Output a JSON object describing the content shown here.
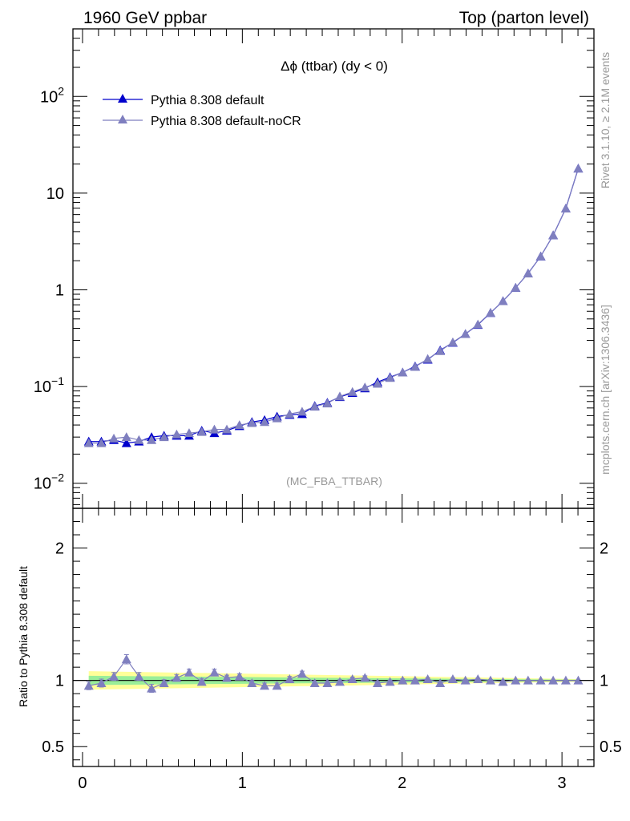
{
  "header": {
    "left": "1960 GeV ppbar",
    "right": "Top (parton level)"
  },
  "side": {
    "rivet": "Rivet 3.1.10, ≥ 2.1M events",
    "mcplots": "mcplots.cern.ch [arXiv:1306.3436]"
  },
  "colors": {
    "default": "#0000cc",
    "nocr": "#7f7fbf",
    "band_outer": "#ffff99",
    "band_inner": "#99ee99",
    "watermark": "#999999"
  },
  "chart_data": [
    {
      "type": "line",
      "panel": "main",
      "title": "Δϕ (ttbar) (dy < 0)",
      "watermark": "(MC_FBA_TTBAR)",
      "yscale": "log",
      "xlim": [
        -0.06,
        3.2
      ],
      "ylim": [
        0.0055,
        500
      ],
      "yticks": [
        {
          "value": 0.01,
          "base": "10",
          "exp": "−2"
        },
        {
          "value": 0.1,
          "base": "10",
          "exp": "−1"
        },
        {
          "value": 1,
          "base": "1",
          "exp": ""
        },
        {
          "value": 10,
          "base": "10",
          "exp": ""
        },
        {
          "value": 100,
          "base": "10",
          "exp": "2"
        }
      ],
      "legend_position": "top-left",
      "x": [
        0.039,
        0.118,
        0.196,
        0.275,
        0.353,
        0.432,
        0.51,
        0.589,
        0.667,
        0.746,
        0.825,
        0.903,
        0.982,
        1.06,
        1.139,
        1.217,
        1.296,
        1.374,
        1.453,
        1.532,
        1.61,
        1.689,
        1.767,
        1.846,
        1.924,
        2.003,
        2.081,
        2.16,
        2.238,
        2.317,
        2.396,
        2.474,
        2.553,
        2.631,
        2.71,
        2.788,
        2.867,
        2.945,
        3.024,
        3.102
      ],
      "series": [
        {
          "name": "Pythia 8.308 default",
          "color": "#0000cc",
          "values": [
            0.027,
            0.027,
            0.028,
            0.026,
            0.027,
            0.03,
            0.031,
            0.031,
            0.031,
            0.035,
            0.033,
            0.035,
            0.039,
            0.043,
            0.045,
            0.049,
            0.051,
            0.052,
            0.063,
            0.068,
            0.078,
            0.086,
            0.096,
            0.111,
            0.125,
            0.14,
            0.162,
            0.19,
            0.237,
            0.284,
            0.35,
            0.435,
            0.578,
            0.766,
            1.05,
            1.48,
            2.22,
            3.67,
            6.94,
            18.0
          ]
        },
        {
          "name": "Pythia 8.308 default-noCR",
          "color": "#7f7fbf",
          "values": [
            0.026,
            0.026,
            0.029,
            0.03,
            0.028,
            0.028,
            0.03,
            0.032,
            0.033,
            0.034,
            0.036,
            0.036,
            0.04,
            0.042,
            0.043,
            0.047,
            0.052,
            0.055,
            0.062,
            0.067,
            0.079,
            0.088,
            0.098,
            0.107,
            0.123,
            0.14,
            0.16,
            0.193,
            0.233,
            0.287,
            0.35,
            0.439,
            0.58,
            0.766,
            1.05,
            1.48,
            2.22,
            3.67,
            6.94,
            18.0
          ]
        }
      ]
    },
    {
      "type": "line",
      "panel": "ratio",
      "ylabel": "Ratio to Pythia 8.308 default",
      "ylim": [
        0.35,
        2.3
      ],
      "yticks": [
        0.5,
        1,
        2
      ],
      "xticks": [
        0,
        1,
        2,
        3
      ],
      "xlim": [
        -0.06,
        3.2
      ],
      "band_outer_halfwidth": [
        0.07,
        0.01
      ],
      "band_inner_halfwidth": [
        0.035,
        0.005
      ],
      "x": [
        0.039,
        0.118,
        0.196,
        0.275,
        0.353,
        0.432,
        0.51,
        0.589,
        0.667,
        0.746,
        0.825,
        0.903,
        0.982,
        1.06,
        1.139,
        1.217,
        1.296,
        1.374,
        1.453,
        1.532,
        1.61,
        1.689,
        1.767,
        1.846,
        1.924,
        2.003,
        2.081,
        2.16,
        2.238,
        2.317,
        2.396,
        2.474,
        2.553,
        2.631,
        2.71,
        2.788,
        2.867,
        2.945,
        3.024,
        3.102
      ],
      "series": [
        {
          "name": "Pythia 8.308 default-noCR",
          "color": "#7f7fbf",
          "values": [
            0.96,
            0.98,
            1.03,
            1.16,
            1.03,
            0.94,
            0.98,
            1.02,
            1.06,
            0.99,
            1.06,
            1.02,
            1.03,
            0.98,
            0.96,
            0.96,
            1.01,
            1.05,
            0.98,
            0.98,
            0.99,
            1.01,
            1.02,
            0.98,
            0.99,
            1.0,
            1.0,
            1.01,
            0.98,
            1.01,
            1.0,
            1.01,
            1.0,
            0.99,
            1.0,
            1.0,
            1.0,
            1.0,
            1.0,
            1.0
          ],
          "errors": [
            0.03,
            0.03,
            0.03,
            0.035,
            0.03,
            0.03,
            0.025,
            0.025,
            0.025,
            0.025,
            0.025,
            0.02,
            0.02,
            0.02,
            0.02,
            0.02,
            0.02,
            0.02,
            0.015,
            0.015,
            0.015,
            0.015,
            0.015,
            0.012,
            0.012,
            0.012,
            0.01,
            0.01,
            0.01,
            0.008,
            0.008,
            0.007,
            0.006,
            0.005,
            0.004,
            0.004,
            0.003,
            0.003,
            0.002,
            0.002
          ]
        }
      ]
    }
  ]
}
